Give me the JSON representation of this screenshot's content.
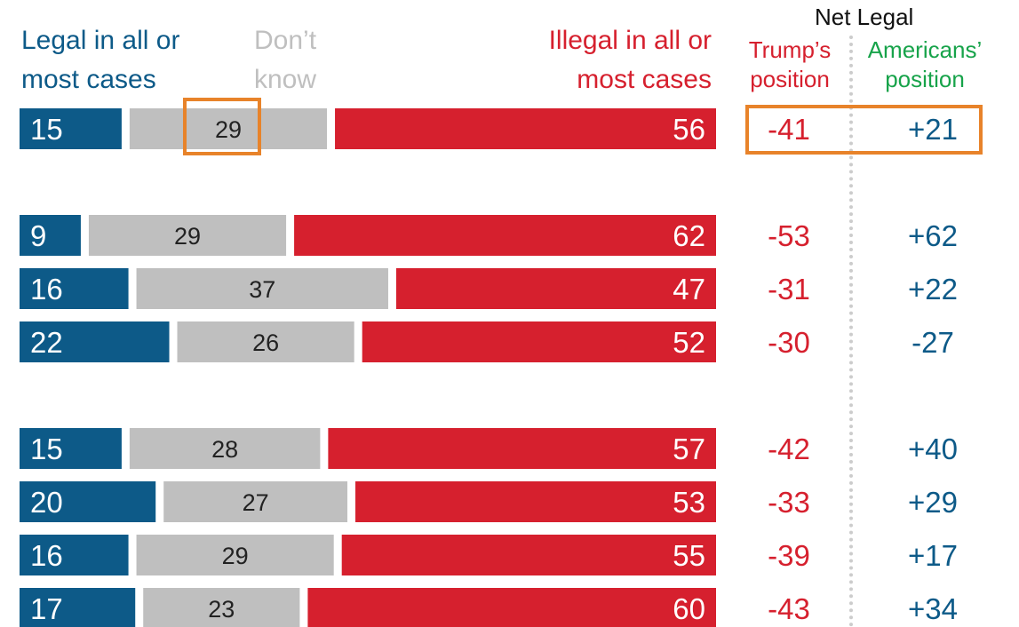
{
  "colors": {
    "legal": "#0d5a88",
    "dont_know": "#bfbfbf",
    "illegal": "#d6202e",
    "trump": "#d6202e",
    "americans_header": "#17a34a",
    "americans": "#0d5a88",
    "highlight": "#e8832a",
    "divider": "#cccccc"
  },
  "headers": {
    "legal": "Legal in all or\nmost cases",
    "dont_know": "Don’t\nknow",
    "illegal": "Illegal in all or\nmost cases",
    "net_legal": "Net Legal",
    "trump": "Trump’s\nposition",
    "americans": "Americans’\nposition"
  },
  "chart_data": {
    "type": "bar",
    "stacked": true,
    "title": "",
    "xlabel": "",
    "ylabel": "",
    "xlim": [
      0,
      100
    ],
    "categories": [
      "",
      "",
      "",
      "",
      "",
      "",
      "",
      ""
    ],
    "groups": [
      [
        0
      ],
      [
        1,
        2,
        3
      ],
      [
        4,
        5,
        6,
        7
      ]
    ],
    "series": [
      {
        "name": "Legal in all or most cases",
        "values": [
          15,
          9,
          16,
          22,
          15,
          20,
          16,
          17
        ]
      },
      {
        "name": "Don’t know",
        "values": [
          29,
          29,
          37,
          26,
          28,
          27,
          29,
          23
        ]
      },
      {
        "name": "Illegal in all or most cases",
        "values": [
          56,
          62,
          47,
          52,
          57,
          53,
          55,
          60
        ]
      }
    ],
    "net_legal": {
      "trump_position": [
        "-41",
        "-53",
        "-31",
        "-30",
        "-42",
        "-33",
        "-39",
        "-43"
      ],
      "americans_position": [
        "+21",
        "+62",
        "+22",
        "-27",
        "+40",
        "+29",
        "+17",
        "+34"
      ]
    }
  }
}
